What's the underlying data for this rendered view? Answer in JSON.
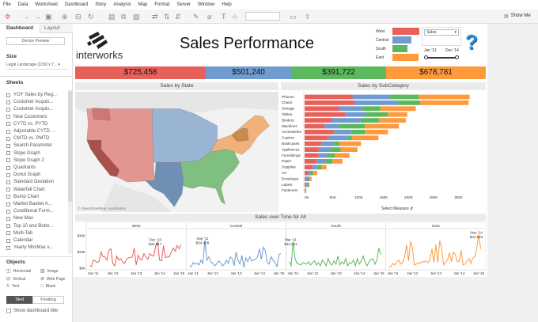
{
  "menu": [
    "File",
    "Data",
    "Worksheet",
    "Dashboard",
    "Story",
    "Analysis",
    "Map",
    "Format",
    "Server",
    "Window",
    "Help"
  ],
  "toolbar": {
    "show_me": "Show Me"
  },
  "left": {
    "tabs": [
      "Dashboard",
      "Layout"
    ],
    "device_preview": "Device Preview",
    "size_label": "Size",
    "size_value": "Legal Landscape (1150 x 7...",
    "sheets_label": "Sheets",
    "sheets": [
      "YOY Sales by Reg...",
      "Customer Acquis...",
      "Customer Acquis...",
      "New Customers",
      "CYTD vs. PYTD",
      "Adjustable CYTD ...",
      "CMTD vs. PMTD",
      "Search Parameter",
      "Slope Graph",
      "Slope Graph 2",
      "Quadrants",
      "Donut Graph",
      "Standard Deviation",
      "Waterfall Chart",
      "Bump Chart",
      "Market Basket A...",
      "Conditional Form...",
      "New Max",
      "Top 10 and Botto...",
      "Multi-Tab",
      "Calendar",
      "Yearly Min/Max v..."
    ],
    "objects_label": "Objects",
    "objects": [
      "Horizontal",
      "Image",
      "Vertical",
      "Web Page",
      "Text",
      "Blank"
    ],
    "tiled": "Tiled",
    "floating": "Floating",
    "show_title": "Show dashboard title"
  },
  "dashboard": {
    "logo": "interworks",
    "title": "Sales Performance",
    "legend": [
      {
        "name": "West",
        "color": "#e8605a",
        "w": 1.0
      },
      {
        "name": "Central",
        "color": "#6f9bd0",
        "w": 0.7
      },
      {
        "name": "South",
        "color": "#5cb85c",
        "w": 0.56
      },
      {
        "name": "East",
        "color": "#ff9a3c",
        "w": 0.96
      }
    ],
    "measure_select": "Sales",
    "date_start": "Jan '11",
    "date_end": "Dec '14",
    "kpis": [
      "$725,458",
      "$501,240",
      "$391,722",
      "$678,781"
    ],
    "map_title": "Sales by State",
    "map_credit": "© OpenStreetMap contributors",
    "bar_title": "Sales by SubCategory",
    "time_title": "Sales over Time for All",
    "select_measure": "Select Measure"
  },
  "chart_data": [
    {
      "type": "bar",
      "stacked": true,
      "orientation": "horizontal",
      "title": "Sales by SubCategory",
      "xlabel": "Select Measure",
      "xlim": [
        0,
        330000
      ],
      "xticks": [
        "0K",
        "50K",
        "100K",
        "150K",
        "200K",
        "250K",
        "300K"
      ],
      "xtick_values": [
        0,
        50000,
        100000,
        150000,
        200000,
        250000,
        300000
      ],
      "categories": [
        "Phones",
        "Chairs",
        "Storage",
        "Tables",
        "Binders",
        "Machines",
        "Accessories",
        "Copiers",
        "Bookcases",
        "Appliances",
        "Furnishings",
        "Paper",
        "Supplies",
        "Art",
        "Envelopes",
        "Labels",
        "Fasteners"
      ],
      "series": [
        {
          "name": "West",
          "color": "#e8605a",
          "values": [
            96,
            100,
            69,
            82,
            54,
            40,
            59,
            47,
            34,
            28,
            28,
            24,
            16,
            7,
            2,
            2,
            1
          ]
        },
        {
          "name": "Central",
          "color": "#6f9bd0",
          "values": [
            74,
            87,
            47,
            41,
            58,
            28,
            35,
            40,
            25,
            25,
            16,
            18,
            9,
            5,
            6,
            3,
            1
          ]
        },
        {
          "name": "South",
          "color": "#5cb85c",
          "values": [
            59,
            45,
            36,
            44,
            37,
            53,
            27,
            8,
            11,
            19,
            17,
            14,
            9,
            5,
            2,
            3,
            0.5
          ]
        },
        {
          "name": "East",
          "color": "#ff9a3c",
          "values": [
            102,
            97,
            71,
            39,
            54,
            68,
            46,
            53,
            43,
            34,
            29,
            20,
            10,
            8,
            4,
            2,
            1
          ]
        }
      ],
      "value_unit": "K"
    },
    {
      "type": "line",
      "title": "Sales over Time for All",
      "ylim": [
        0,
        45
      ],
      "yticks": [
        "$0K",
        "$20K",
        "$40K"
      ],
      "ytick_values": [
        0,
        20,
        40
      ],
      "value_unit": "K",
      "x_start": "Jan '11",
      "x_end": "Dec '14",
      "xticks": [
        "Jan '11",
        "Jan '12",
        "Jan '13",
        "Jan '14",
        "Jan '15"
      ],
      "panels": [
        {
          "name": "West",
          "color": "#e8605a",
          "annotation": {
            "label": "Dec '13",
            "value": "$32,617",
            "index": 35
          },
          "values": [
            3,
            2,
            10,
            9,
            7,
            9,
            20,
            14,
            14,
            10,
            22,
            24,
            6,
            3,
            15,
            10,
            12,
            8,
            6,
            11,
            13,
            13,
            14,
            25,
            4,
            16,
            11,
            10,
            18,
            14,
            11,
            18,
            16,
            15,
            27,
            32.6,
            10,
            9,
            28,
            13,
            14,
            14,
            20,
            25,
            21,
            28,
            24,
            29
          ]
        },
        {
          "name": "Central",
          "color": "#6f9bd0",
          "annotation": {
            "label": "Sep '11",
            "value": "$34,409",
            "index": 8
          },
          "values": [
            2,
            2,
            7,
            5,
            6,
            4,
            10,
            6,
            34.4,
            10,
            14,
            8,
            6,
            3,
            5,
            9,
            7,
            3,
            5,
            10,
            6,
            14,
            12,
            3,
            20,
            10,
            5,
            16,
            1,
            13,
            8,
            14,
            9,
            10,
            11,
            14,
            24,
            11,
            26,
            22,
            7,
            5,
            14,
            10,
            7,
            2,
            17,
            18
          ]
        },
        {
          "name": "South",
          "color": "#5cb85c",
          "annotation": {
            "label": "Mar '11",
            "value": "$32,911",
            "index": 2
          },
          "values": [
            8,
            3,
            32.9,
            12,
            6,
            5,
            4,
            7,
            6,
            5,
            8,
            4,
            7,
            9,
            4,
            7,
            3,
            10,
            7,
            3,
            12,
            6,
            4,
            9,
            5,
            15,
            4,
            8,
            5,
            12,
            3,
            7,
            6,
            10,
            3,
            12,
            5,
            9,
            15,
            7,
            3,
            8,
            11,
            12,
            5,
            10,
            25,
            17
          ]
        },
        {
          "name": "East",
          "color": "#ff9a3c",
          "annotation": {
            "label": "Nov '14",
            "value": "$41,524",
            "index": 46
          },
          "values": [
            1,
            2,
            6,
            4,
            8,
            10,
            5,
            7,
            14,
            29,
            9,
            33,
            25,
            4,
            5,
            7,
            6,
            8,
            8,
            9,
            7,
            11,
            24,
            7,
            29,
            7,
            34,
            25,
            4,
            7,
            10,
            19,
            8,
            20,
            17,
            8,
            9,
            22,
            4,
            5,
            9,
            12,
            6,
            13,
            14,
            25,
            41.5,
            24
          ]
        }
      ]
    }
  ]
}
